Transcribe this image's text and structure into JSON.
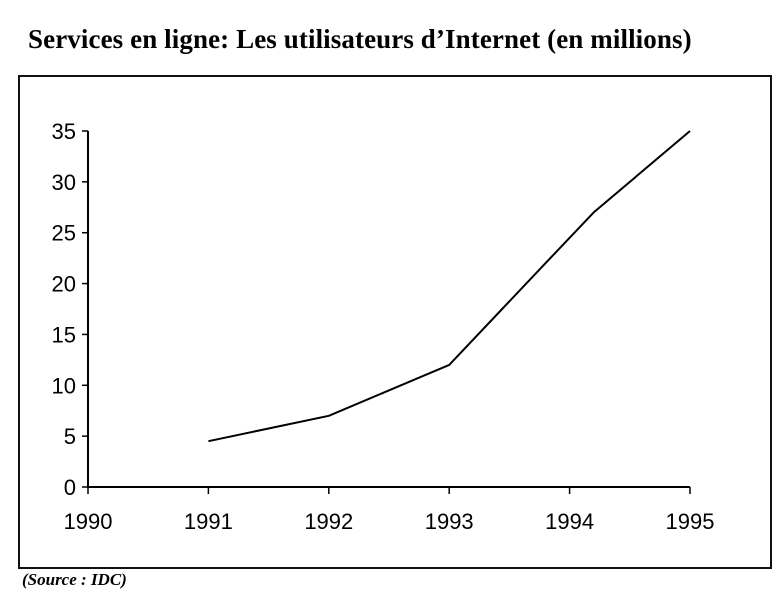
{
  "chart_data": {
    "type": "line",
    "title": "Services en ligne: Les utilisateurs d’Internet (en millions)",
    "xlabel": "",
    "ylabel": "",
    "x_ticks": [
      "1990",
      "1991",
      "1992",
      "1993",
      "1994",
      "1995"
    ],
    "y_ticks": [
      "0",
      "5",
      "10",
      "15",
      "20",
      "25",
      "30",
      "35"
    ],
    "xlim": [
      1990,
      1995
    ],
    "ylim": [
      0,
      35
    ],
    "grid": false,
    "legend": "none",
    "series": [
      {
        "x": [
          1991,
          1992,
          1993,
          1993.8,
          1994.2,
          1995
        ],
        "y": [
          4.5,
          7,
          12,
          22,
          27,
          35
        ]
      }
    ],
    "line_color": "#000000"
  },
  "source": "(Source : IDC)"
}
